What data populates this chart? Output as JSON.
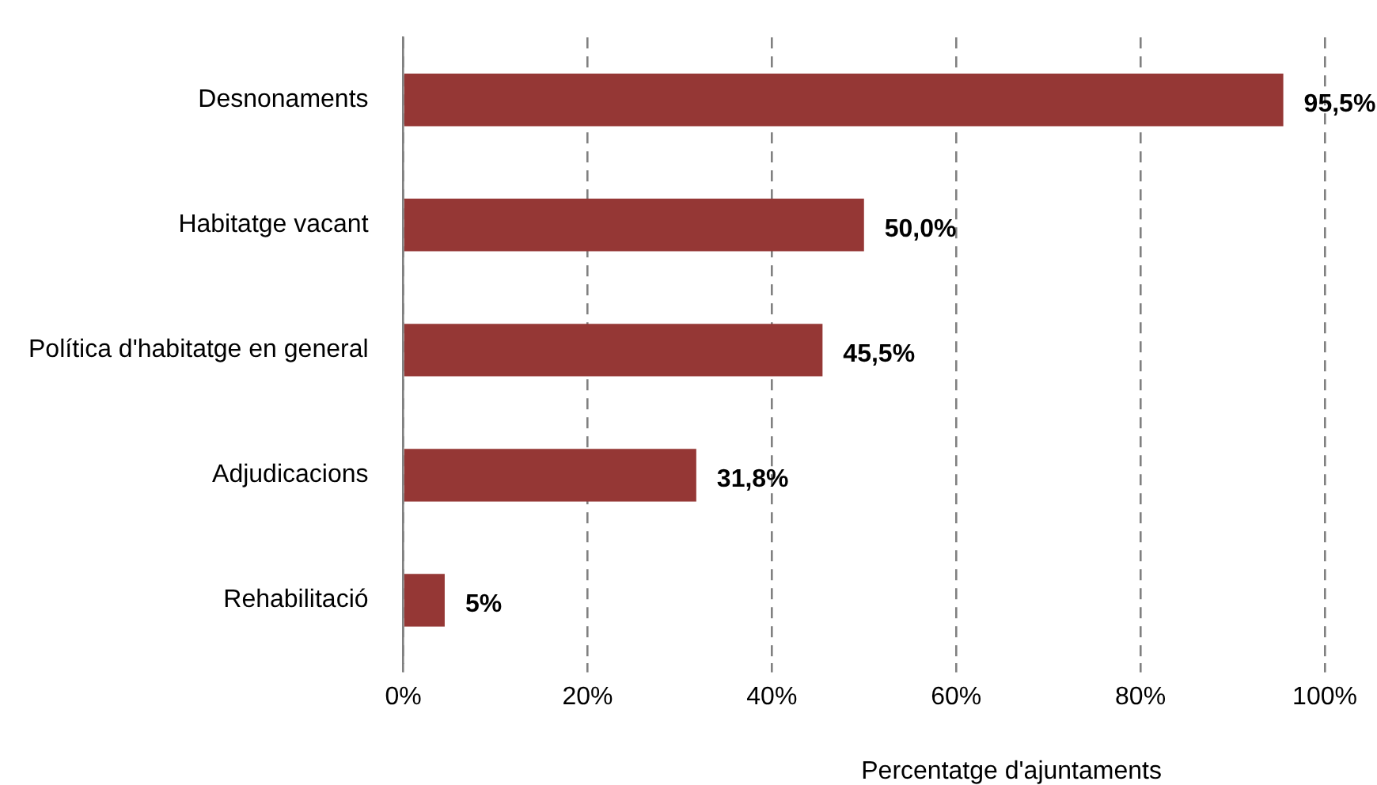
{
  "chart_data": {
    "type": "bar",
    "orientation": "horizontal",
    "xlabel": "Percentatge d'ajuntaments",
    "categories": [
      "Desnonaments",
      "Habitatge vacant",
      "Política d'habitatge en general",
      "Adjudicacions",
      "Rehabilitació"
    ],
    "values": [
      95.5,
      50.0,
      45.5,
      31.8,
      4.5
    ],
    "color": "#953735",
    "value_labels": [
      "95,5%",
      "50,0%",
      "45,5%",
      "31,8%",
      "5%"
    ],
    "xlim": [
      0,
      100
    ],
    "xticks": [
      {
        "value": 0,
        "label": "0%"
      },
      {
        "value": 20,
        "label": "20%"
      },
      {
        "value": 40,
        "label": "40%"
      },
      {
        "value": 60,
        "label": "60%"
      },
      {
        "value": 80,
        "label": "80%"
      },
      {
        "value": 100,
        "label": "100%"
      }
    ],
    "grid": "x",
    "legend": false
  }
}
